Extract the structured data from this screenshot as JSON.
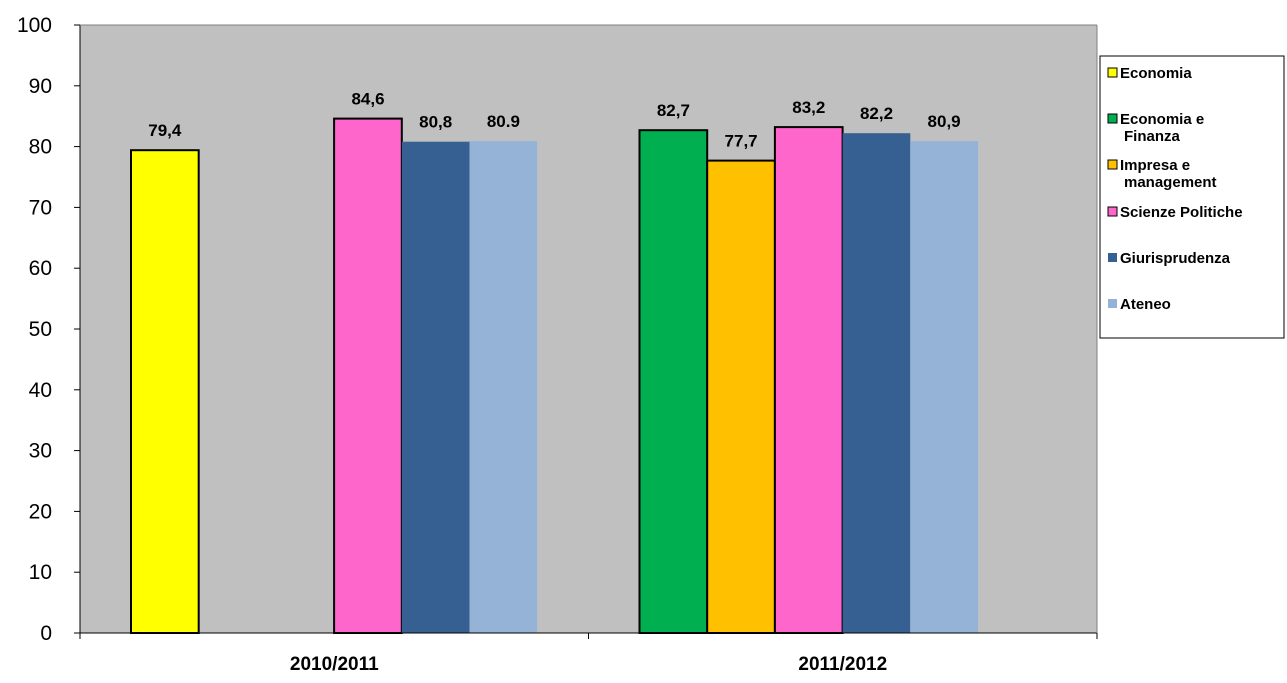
{
  "chart_data": {
    "type": "bar",
    "categories": [
      "2010/2011",
      "2011/2012"
    ],
    "ylim": [
      0,
      100
    ],
    "yticks": [
      0,
      10,
      20,
      30,
      40,
      50,
      60,
      70,
      80,
      90,
      100
    ],
    "grid": false,
    "plot_background": "#C0C0C0",
    "legend_position": "right",
    "series": [
      {
        "name": "Economia",
        "legend_lines": [
          "Economia"
        ],
        "color": "#FFFF00",
        "outlined": true,
        "values": [
          79.4,
          null
        ],
        "labels": [
          "79,4",
          null
        ]
      },
      {
        "name": "Economia e Finanza",
        "legend_lines": [
          "Economia e",
          "Finanza"
        ],
        "color": "#00B050",
        "outlined": true,
        "values": [
          null,
          82.7
        ],
        "labels": [
          null,
          "82,7"
        ]
      },
      {
        "name": "Impresa e management",
        "legend_lines": [
          "Impresa e",
          "management"
        ],
        "color": "#FFC000",
        "outlined": true,
        "values": [
          null,
          77.7
        ],
        "labels": [
          null,
          "77,7"
        ]
      },
      {
        "name": "Scienze Politiche",
        "legend_lines": [
          "Scienze Politiche"
        ],
        "color": "#FF66CC",
        "outlined": true,
        "values": [
          84.6,
          83.2
        ],
        "labels": [
          "84,6",
          "83,2"
        ]
      },
      {
        "name": "Giurisprudenza",
        "legend_lines": [
          "Giurisprudenza"
        ],
        "color": "#376092",
        "outlined": false,
        "values": [
          80.8,
          82.2
        ],
        "labels": [
          "80,8",
          "82,2"
        ]
      },
      {
        "name": "Ateneo",
        "legend_lines": [
          "Ateneo"
        ],
        "color": "#95B3D7",
        "outlined": false,
        "values": [
          80.9,
          80.9
        ],
        "labels": [
          "80.9",
          "80,9"
        ]
      }
    ]
  }
}
